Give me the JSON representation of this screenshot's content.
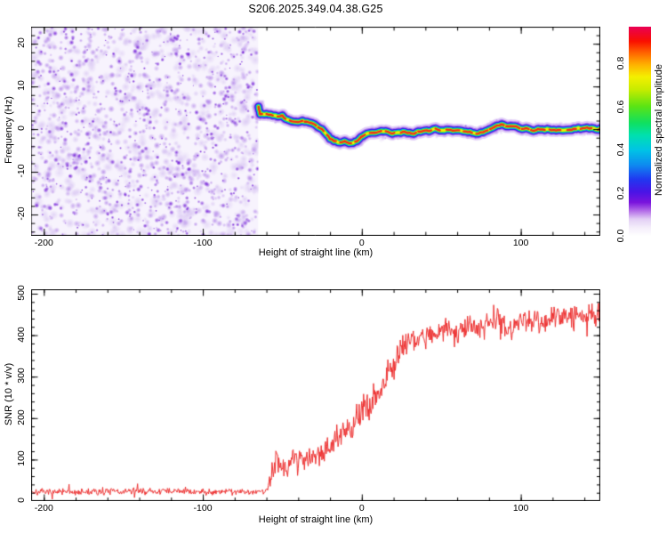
{
  "title": "S206.2025.349.04.38.G25",
  "colors": {
    "background": "#ffffff",
    "axis": "#000000",
    "snr_line": "#ee3333",
    "noise_light": "#d6c2f2",
    "noise_mid": "#a875e6",
    "noise_dark": "#6a10d4",
    "trace_core_red": "#f03018"
  },
  "chart_data": [
    {
      "type": "heatmap",
      "name": "spectrogram",
      "xlabel": "Height of straight line (km)",
      "ylabel": "Frequency (Hz)",
      "xlim": [
        -208,
        150
      ],
      "ylim": [
        -25,
        24
      ],
      "x_ticks": [
        -200,
        -100,
        0,
        100
      ],
      "x_tick_labels": [
        "-200",
        "-100",
        "0",
        "100"
      ],
      "x_minor_step": 20,
      "y_ticks": [
        20,
        10,
        0,
        -10,
        -20
      ],
      "y_tick_labels": [
        "20",
        "10",
        "0",
        "-10",
        "-20"
      ],
      "y_minor_step": 2,
      "grid": false,
      "noise_region": {
        "x_start_km": -208,
        "x_end_km": -65
      },
      "signal_trace": {
        "points_km_hz": [
          [
            -65,
            5.2
          ],
          [
            -64,
            3.0
          ],
          [
            -56,
            2.9
          ],
          [
            -50,
            2.9
          ],
          [
            -48,
            2.1
          ],
          [
            -36,
            2.0
          ],
          [
            -30,
            1.6
          ],
          [
            -25,
            0.2
          ],
          [
            -20,
            -1.6
          ],
          [
            -15,
            -2.9
          ],
          [
            -8,
            -3.1
          ],
          [
            -3,
            -2.6
          ],
          [
            2,
            -1.4
          ],
          [
            8,
            -0.7
          ],
          [
            15,
            -0.4
          ],
          [
            30,
            -0.4
          ],
          [
            45,
            -0.3
          ],
          [
            60,
            -0.3
          ],
          [
            72,
            -0.6
          ],
          [
            82,
            0.2
          ],
          [
            88,
            0.7
          ],
          [
            95,
            0.2
          ],
          [
            105,
            -0.3
          ],
          [
            118,
            -0.1
          ],
          [
            132,
            0.1
          ],
          [
            150,
            0.2
          ]
        ]
      },
      "colorbar": {
        "label": "Normalized spectral amplitude",
        "ticks": [
          0.0,
          0.2,
          0.4,
          0.6,
          0.8
        ],
        "tick_labels": [
          "0.0",
          "0.2",
          "0.4",
          "0.6",
          "0.8"
        ],
        "minor_step": 0.05,
        "range": [
          0,
          0.97
        ],
        "colormap_stops": [
          [
            0.0,
            "#ffffff"
          ],
          [
            0.04,
            "#f5eefb"
          ],
          [
            0.08,
            "#e3cff5"
          ],
          [
            0.12,
            "#b36ce8"
          ],
          [
            0.16,
            "#7a14dd"
          ],
          [
            0.21,
            "#4a14e6"
          ],
          [
            0.27,
            "#2138f0"
          ],
          [
            0.34,
            "#0e8cf0"
          ],
          [
            0.41,
            "#00c4e6"
          ],
          [
            0.48,
            "#00e0b0"
          ],
          [
            0.54,
            "#10e060"
          ],
          [
            0.62,
            "#5ce414"
          ],
          [
            0.7,
            "#c8ec00"
          ],
          [
            0.76,
            "#f4f000"
          ],
          [
            0.82,
            "#ffb000"
          ],
          [
            0.88,
            "#ff5d00"
          ],
          [
            0.93,
            "#fa1000"
          ],
          [
            1.0,
            "#ea0055"
          ]
        ]
      }
    },
    {
      "type": "line",
      "name": "snr",
      "xlabel": "Height of straight line (km)",
      "ylabel": "SNR (10 * v/v)",
      "xlim": [
        -208,
        150
      ],
      "ylim": [
        0,
        500
      ],
      "x_ticks": [
        -200,
        -100,
        0,
        100
      ],
      "x_tick_labels": [
        "-200",
        "-100",
        "0",
        "100"
      ],
      "x_minor_step": 20,
      "y_ticks": [
        500,
        400,
        300,
        200,
        100,
        0
      ],
      "y_tick_labels": [
        "500",
        "400",
        "300",
        "200",
        "100",
        "0"
      ],
      "y_minor_step": 20,
      "grid": false,
      "series": [
        {
          "name": "SNR",
          "color": "#ee3333",
          "envelope_km_mean_amp": [
            [
              -208,
              22,
              12
            ],
            [
              -180,
              22,
              12
            ],
            [
              -150,
              23,
              13
            ],
            [
              -120,
              24,
              13
            ],
            [
              -100,
              22,
              12
            ],
            [
              -85,
              24,
              12
            ],
            [
              -75,
              23,
              12
            ],
            [
              -65,
              22,
              11
            ],
            [
              -60,
              26,
              13
            ],
            [
              -57,
              50,
              30
            ],
            [
              -54,
              115,
              50
            ],
            [
              -52,
              95,
              45
            ],
            [
              -49,
              80,
              35
            ],
            [
              -46,
              85,
              35
            ],
            [
              -43,
              105,
              40
            ],
            [
              -40,
              95,
              38
            ],
            [
              -36,
              110,
              42
            ],
            [
              -32,
              105,
              40
            ],
            [
              -28,
              122,
              45
            ],
            [
              -24,
              118,
              42
            ],
            [
              -20,
              135,
              46
            ],
            [
              -16,
              148,
              48
            ],
            [
              -12,
              158,
              50
            ],
            [
              -8,
              172,
              52
            ],
            [
              -4,
              190,
              55
            ],
            [
              0,
              210,
              58
            ],
            [
              4,
              228,
              58
            ],
            [
              8,
              250,
              60
            ],
            [
              12,
              275,
              62
            ],
            [
              16,
              308,
              62
            ],
            [
              20,
              338,
              58
            ],
            [
              24,
              362,
              52
            ],
            [
              28,
              385,
              48
            ],
            [
              32,
              395,
              46
            ],
            [
              36,
              388,
              46
            ],
            [
              40,
              404,
              44
            ],
            [
              44,
              396,
              46
            ],
            [
              48,
              408,
              42
            ],
            [
              52,
              415,
              42
            ],
            [
              56,
              405,
              46
            ],
            [
              60,
              398,
              48
            ],
            [
              64,
              418,
              42
            ],
            [
              68,
              428,
              42
            ],
            [
              72,
              415,
              46
            ],
            [
              76,
              424,
              42
            ],
            [
              80,
              430,
              40
            ],
            [
              84,
              436,
              42
            ],
            [
              88,
              428,
              46
            ],
            [
              92,
              420,
              50
            ],
            [
              96,
              428,
              46
            ],
            [
              100,
              432,
              44
            ],
            [
              104,
              442,
              40
            ],
            [
              108,
              436,
              44
            ],
            [
              112,
              430,
              46
            ],
            [
              116,
              436,
              44
            ],
            [
              120,
              442,
              40
            ],
            [
              124,
              436,
              44
            ],
            [
              128,
              446,
              40
            ],
            [
              132,
              440,
              44
            ],
            [
              136,
              446,
              42
            ],
            [
              140,
              448,
              40
            ],
            [
              144,
              452,
              40
            ],
            [
              148,
              448,
              42
            ],
            [
              150,
              450,
              40
            ]
          ]
        }
      ]
    }
  ]
}
